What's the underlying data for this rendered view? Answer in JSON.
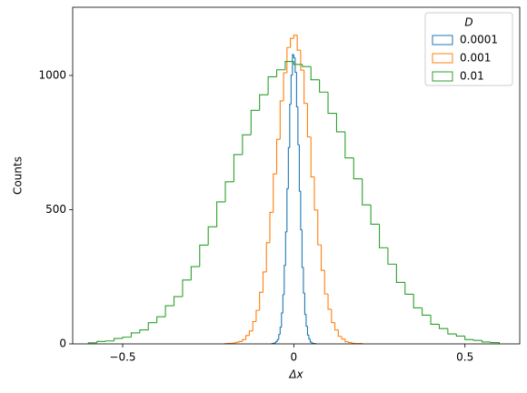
{
  "chart_data": {
    "type": "histogram",
    "xlabel": "Δx",
    "ylabel": "Counts",
    "legend_title": "D",
    "legend": "upper right",
    "xlim": [
      -0.646,
      0.66
    ],
    "ylim": [
      0,
      1254
    ],
    "xticks": [
      {
        "value": -0.5,
        "label": "−0.5"
      },
      0,
      0.5
    ],
    "yticks": [
      0,
      500,
      1000
    ],
    "series": [
      {
        "name": "0.0001",
        "color": "#1f77b4",
        "bins": [
          -0.064,
          -0.06,
          -0.056,
          -0.052,
          -0.048,
          -0.044,
          -0.04,
          -0.036,
          -0.032,
          -0.028,
          -0.024,
          -0.02,
          -0.016,
          -0.012,
          -0.008,
          -0.004,
          0,
          0.004,
          0.008,
          0.012,
          0.016,
          0.02,
          0.024,
          0.028,
          0.032,
          0.036,
          0.04,
          0.044,
          0.048,
          0.052,
          0.056,
          0.06,
          0.064
        ],
        "values": [
          1,
          2,
          4,
          9,
          16,
          35,
          62,
          115,
          183,
          292,
          417,
          578,
          731,
          893,
          1001,
          1078,
          1066,
          1012,
          883,
          742,
          569,
          425,
          285,
          189,
          110,
          66,
          33,
          18,
          7,
          4,
          1,
          1
        ]
      },
      {
        "name": "0.001",
        "color": "#ff7f0e",
        "bins": [
          -0.2,
          -0.19,
          -0.18,
          -0.17,
          -0.16,
          -0.15,
          -0.14,
          -0.13,
          -0.12,
          -0.11,
          -0.1,
          -0.09,
          -0.08,
          -0.07,
          -0.06,
          -0.05,
          -0.04,
          -0.03,
          -0.02,
          -0.01,
          0,
          0.01,
          0.02,
          0.03,
          0.04,
          0.05,
          0.06,
          0.07,
          0.08,
          0.09,
          0.1,
          0.11,
          0.12,
          0.13,
          0.14,
          0.15,
          0.16,
          0.17,
          0.18,
          0.19,
          0.2
        ],
        "values": [
          1,
          2,
          3,
          6,
          9,
          16,
          31,
          48,
          83,
          125,
          192,
          268,
          377,
          490,
          633,
          762,
          905,
          1010,
          1104,
          1138,
          1150,
          1094,
          1020,
          896,
          771,
          622,
          499,
          369,
          274,
          186,
          129,
          79,
          52,
          28,
          18,
          8,
          5,
          2,
          1,
          1
        ]
      },
      {
        "name": "0.01",
        "color": "#2ca02c",
        "bins": [
          -0.6,
          -0.575,
          -0.55,
          -0.525,
          -0.5,
          -0.475,
          -0.45,
          -0.425,
          -0.4,
          -0.375,
          -0.35,
          -0.325,
          -0.3,
          -0.275,
          -0.25,
          -0.225,
          -0.2,
          -0.175,
          -0.15,
          -0.125,
          -0.1,
          -0.075,
          -0.05,
          -0.025,
          0,
          0.025,
          0.05,
          0.075,
          0.1,
          0.125,
          0.15,
          0.175,
          0.2,
          0.225,
          0.25,
          0.275,
          0.3,
          0.325,
          0.35,
          0.375,
          0.4,
          0.425,
          0.45,
          0.475,
          0.5,
          0.525,
          0.55,
          0.575,
          0.6
        ],
        "values": [
          4,
          9,
          11,
          20,
          25,
          41,
          52,
          79,
          101,
          142,
          176,
          238,
          288,
          368,
          436,
          529,
          604,
          705,
          779,
          870,
          928,
          995,
          1021,
          1052,
          1041,
          1033,
          984,
          938,
          859,
          790,
          693,
          615,
          518,
          446,
          358,
          297,
          229,
          185,
          134,
          107,
          73,
          57,
          37,
          29,
          16,
          13,
          7,
          5
        ]
      }
    ]
  }
}
